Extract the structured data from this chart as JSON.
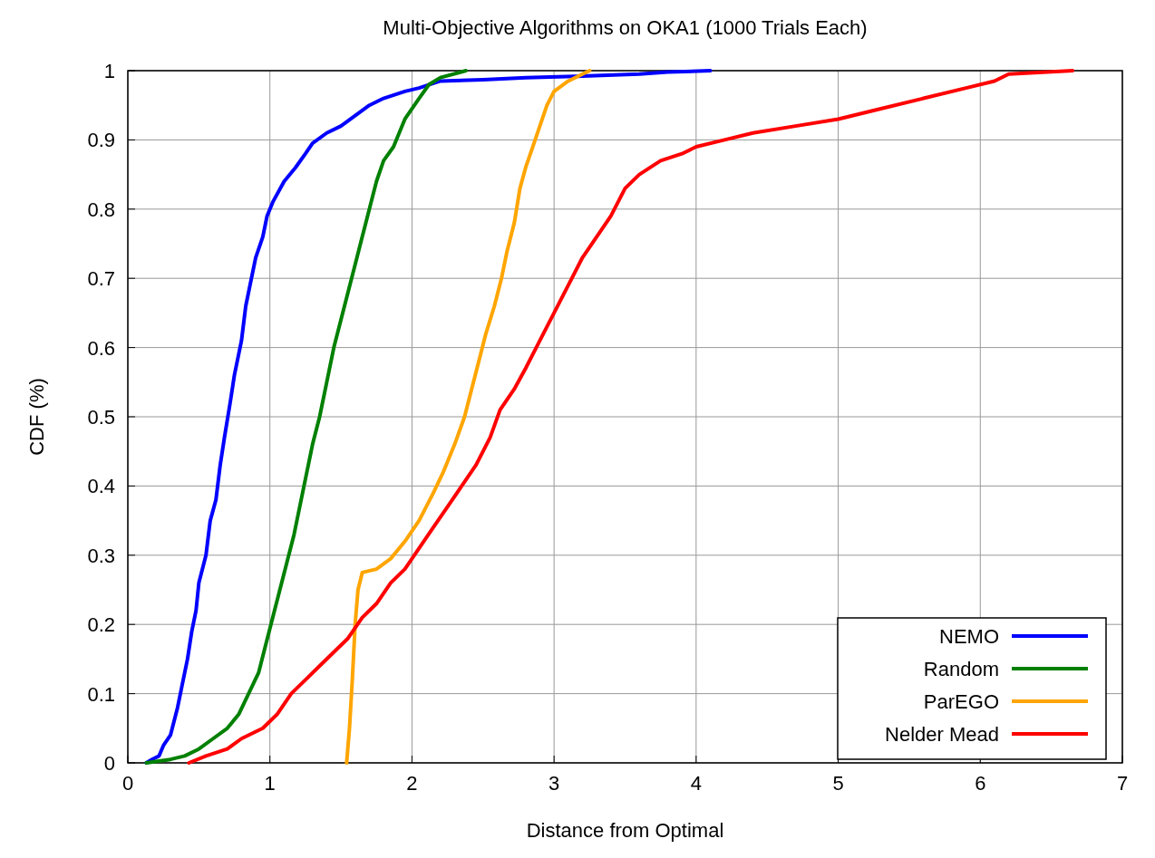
{
  "chart_data": {
    "type": "line",
    "title": "Multi-Objective Algorithms on OKA1 (1000 Trials Each)",
    "xlabel": "Distance from Optimal",
    "ylabel": "CDF (%)",
    "xlim": [
      0,
      7
    ],
    "ylim": [
      0,
      1
    ],
    "xticks": [
      0,
      1,
      2,
      3,
      4,
      5,
      6,
      7
    ],
    "yticks": [
      0,
      0.1,
      0.2,
      0.3,
      0.4,
      0.5,
      0.6,
      0.7,
      0.8,
      0.9,
      1
    ],
    "grid": true,
    "legend": "bottom right",
    "line_style": "solid",
    "series": [
      {
        "name": "NEMO",
        "color": "#0000ff",
        "x": [
          0.13,
          0.17,
          0.22,
          0.25,
          0.3,
          0.35,
          0.38,
          0.42,
          0.45,
          0.48,
          0.5,
          0.55,
          0.58,
          0.62,
          0.65,
          0.68,
          0.72,
          0.75,
          0.8,
          0.83,
          0.87,
          0.9,
          0.95,
          0.98,
          1.02,
          1.1,
          1.18,
          1.25,
          1.3,
          1.4,
          1.5,
          1.6,
          1.7,
          1.8,
          1.95,
          2.05,
          2.2,
          2.5,
          2.8,
          3.2,
          3.6,
          3.8,
          4.1
        ],
        "values": [
          0,
          0.005,
          0.01,
          0.025,
          0.04,
          0.08,
          0.11,
          0.15,
          0.19,
          0.22,
          0.26,
          0.3,
          0.35,
          0.38,
          0.43,
          0.47,
          0.52,
          0.56,
          0.61,
          0.66,
          0.7,
          0.73,
          0.76,
          0.79,
          0.81,
          0.84,
          0.86,
          0.88,
          0.895,
          0.91,
          0.92,
          0.935,
          0.95,
          0.96,
          0.97,
          0.975,
          0.985,
          0.987,
          0.99,
          0.992,
          0.995,
          0.998,
          1
        ]
      },
      {
        "name": "Random",
        "color": "#008000",
        "x": [
          0.13,
          0.3,
          0.4,
          0.5,
          0.6,
          0.7,
          0.78,
          0.85,
          0.92,
          0.97,
          1.02,
          1.07,
          1.12,
          1.17,
          1.22,
          1.26,
          1.3,
          1.35,
          1.4,
          1.45,
          1.5,
          1.55,
          1.6,
          1.65,
          1.7,
          1.75,
          1.8,
          1.87,
          1.95,
          2.05,
          2.12,
          2.2,
          2.38
        ],
        "values": [
          0,
          0.005,
          0.01,
          0.02,
          0.035,
          0.05,
          0.07,
          0.1,
          0.13,
          0.17,
          0.21,
          0.25,
          0.29,
          0.33,
          0.38,
          0.42,
          0.46,
          0.5,
          0.55,
          0.6,
          0.64,
          0.68,
          0.72,
          0.76,
          0.8,
          0.84,
          0.87,
          0.89,
          0.93,
          0.96,
          0.98,
          0.99,
          1
        ]
      },
      {
        "name": "ParEGO",
        "color": "#ffa500",
        "x": [
          1.54,
          1.56,
          1.58,
          1.6,
          1.62,
          1.65,
          1.75,
          1.85,
          1.95,
          2.05,
          2.15,
          2.22,
          2.3,
          2.37,
          2.42,
          2.47,
          2.52,
          2.58,
          2.63,
          2.67,
          2.72,
          2.76,
          2.8,
          2.85,
          2.9,
          2.95,
          3.0,
          3.1,
          3.2,
          3.25
        ],
        "values": [
          0,
          0.05,
          0.12,
          0.2,
          0.25,
          0.275,
          0.28,
          0.295,
          0.32,
          0.35,
          0.39,
          0.42,
          0.46,
          0.5,
          0.54,
          0.58,
          0.62,
          0.66,
          0.7,
          0.74,
          0.78,
          0.83,
          0.86,
          0.89,
          0.92,
          0.95,
          0.97,
          0.985,
          0.995,
          1
        ]
      },
      {
        "name": "Nelder Mead",
        "color": "#ff0000",
        "x": [
          0.43,
          0.55,
          0.7,
          0.8,
          0.95,
          1.05,
          1.15,
          1.25,
          1.35,
          1.45,
          1.55,
          1.65,
          1.75,
          1.85,
          1.95,
          2.05,
          2.15,
          2.25,
          2.35,
          2.45,
          2.55,
          2.62,
          2.72,
          2.8,
          2.9,
          3.0,
          3.1,
          3.2,
          3.3,
          3.4,
          3.5,
          3.6,
          3.75,
          3.9,
          4.0,
          4.2,
          4.4,
          4.7,
          5.0,
          5.3,
          5.6,
          5.9,
          6.1,
          6.2,
          6.65
        ],
        "values": [
          0,
          0.01,
          0.02,
          0.035,
          0.05,
          0.07,
          0.1,
          0.12,
          0.14,
          0.16,
          0.18,
          0.21,
          0.23,
          0.26,
          0.28,
          0.31,
          0.34,
          0.37,
          0.4,
          0.43,
          0.47,
          0.51,
          0.54,
          0.57,
          0.61,
          0.65,
          0.69,
          0.73,
          0.76,
          0.79,
          0.83,
          0.85,
          0.87,
          0.88,
          0.89,
          0.9,
          0.91,
          0.92,
          0.93,
          0.945,
          0.96,
          0.975,
          0.985,
          0.995,
          1
        ]
      }
    ]
  }
}
